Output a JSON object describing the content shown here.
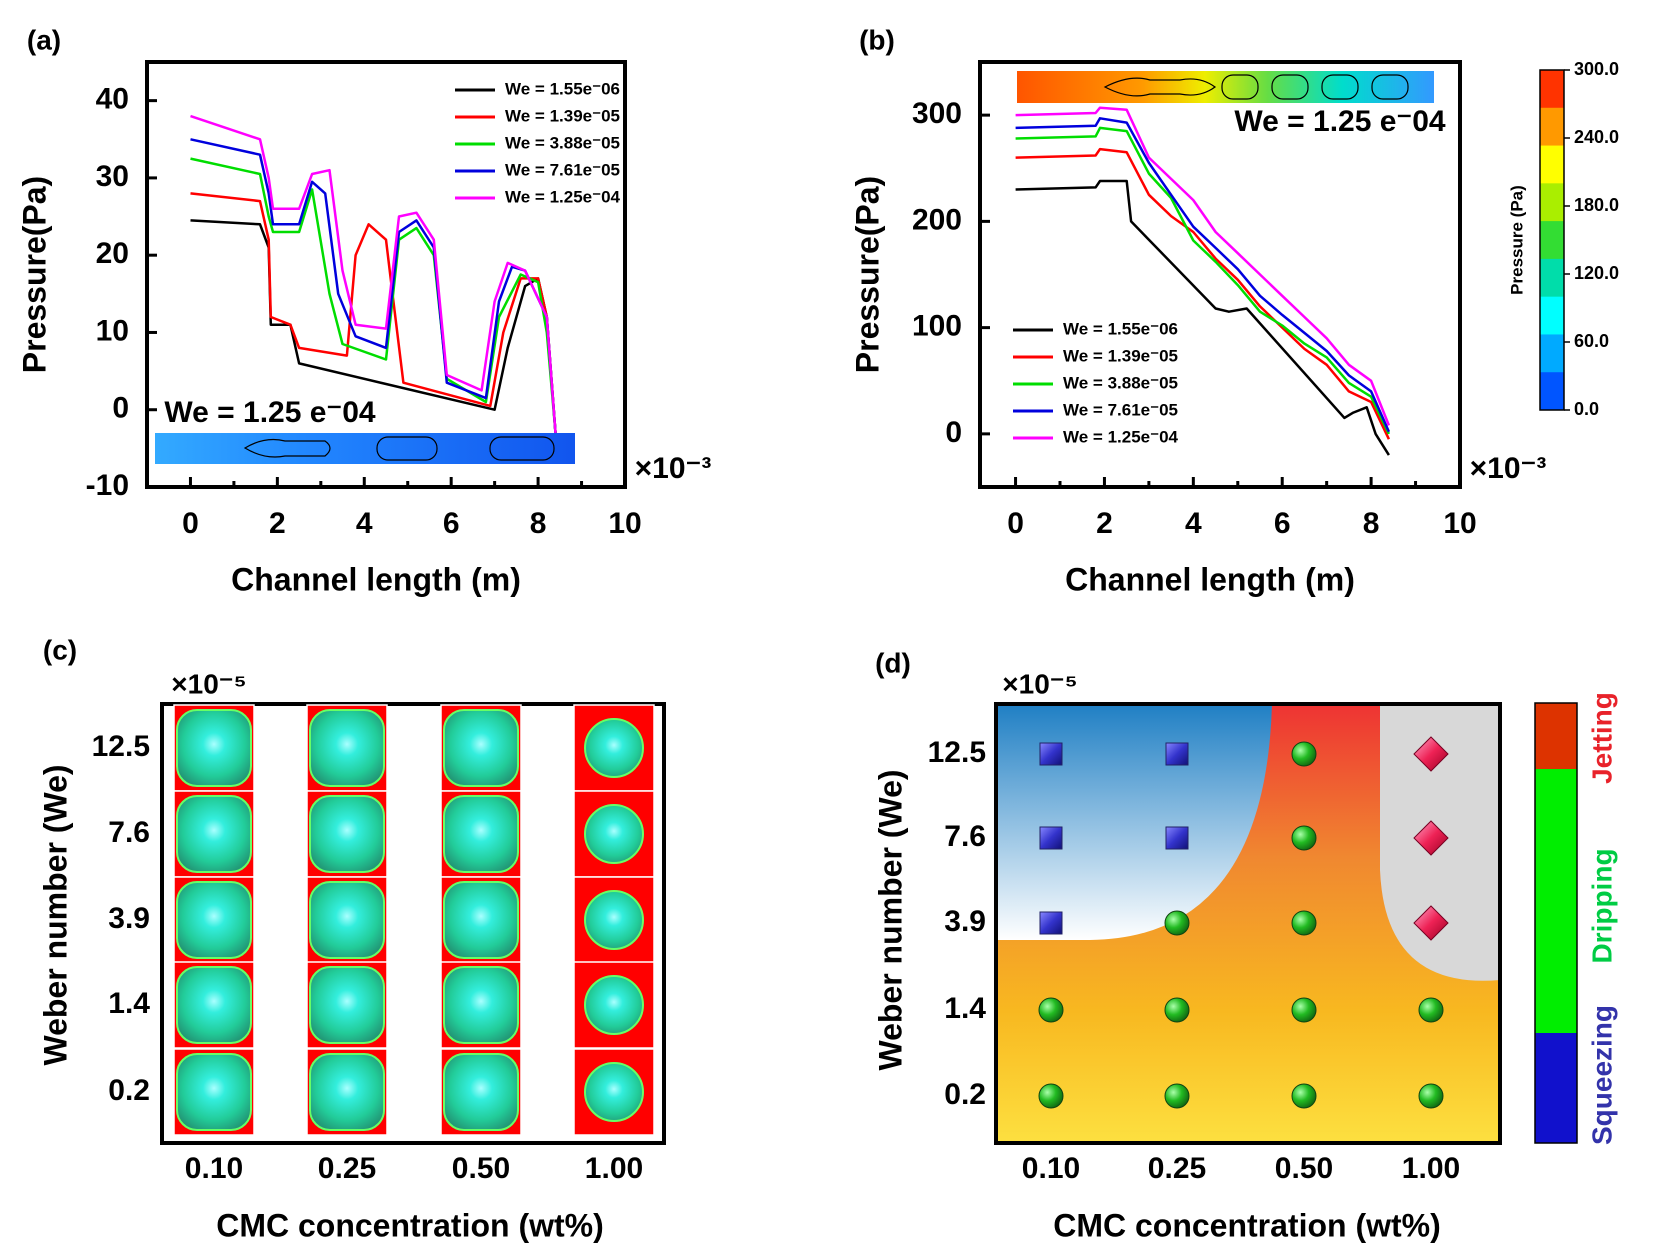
{
  "panels": {
    "a": {
      "label": "(a)",
      "banner": "We = 1.25 e⁻04",
      "exponent": "×10⁻³"
    },
    "b": {
      "label": "(b)",
      "banner": "We = 1.25 e⁻04",
      "exponent": "×10⁻³",
      "colorbar_title": "Pressure (Pa)"
    },
    "c": {
      "label": "(c)",
      "exponent": "×10⁻⁵"
    },
    "d": {
      "label": "(d)",
      "exponent": "×10⁻⁵"
    }
  },
  "chart_data": [
    {
      "id": "a",
      "type": "line",
      "xlabel": "Channel length (m)",
      "ylabel": "Pressure(Pa)",
      "xlim": [
        -1,
        10
      ],
      "ylim": [
        -10,
        45
      ],
      "xticks": [
        0,
        2,
        4,
        6,
        8,
        10
      ],
      "yticks": [
        -10,
        0,
        10,
        20,
        30,
        40
      ],
      "x_scale_note": "×10⁻³",
      "legend_position": "top-right",
      "series": [
        {
          "name": "We = 1.55e⁻06",
          "color": "#000000",
          "x": [
            0,
            1.6,
            1.8,
            1.85,
            2.3,
            2.5,
            7.0,
            7.3,
            7.7,
            8.0,
            8.2,
            8.4
          ],
          "y": [
            24.5,
            24,
            21,
            11,
            11,
            6,
            0,
            8,
            16,
            17,
            12,
            -3
          ]
        },
        {
          "name": "We = 1.39e⁻05",
          "color": "#ff0000",
          "x": [
            0,
            1.6,
            1.8,
            1.85,
            2.3,
            2.5,
            3.6,
            3.8,
            4.1,
            4.5,
            4.65,
            4.9,
            6.9,
            7.2,
            7.6,
            8.0,
            8.2,
            8.4
          ],
          "y": [
            28,
            27,
            22,
            12,
            11,
            8,
            7,
            20,
            24,
            22,
            15,
            3.5,
            0.5,
            10,
            17,
            17,
            12,
            -3
          ]
        },
        {
          "name": "We = 3.88e⁻05",
          "color": "#00dd00",
          "x": [
            0,
            1.6,
            1.8,
            1.9,
            2.5,
            2.8,
            3.2,
            3.5,
            4.5,
            4.8,
            5.2,
            5.6,
            5.9,
            6.8,
            7.1,
            7.6,
            8.0,
            8.2,
            8.4
          ],
          "y": [
            32.5,
            30.5,
            25,
            23,
            23,
            28.5,
            15,
            8.5,
            6.5,
            22,
            23.5,
            20,
            4,
            1,
            12,
            17.5,
            16.5,
            10,
            -3
          ]
        },
        {
          "name": "We = 7.61e⁻05",
          "color": "#0000dd",
          "x": [
            0,
            1.6,
            1.8,
            1.9,
            2.5,
            2.8,
            3.1,
            3.4,
            3.8,
            4.5,
            4.8,
            5.2,
            5.6,
            5.9,
            6.8,
            7.1,
            7.4,
            7.7,
            8.2,
            8.4
          ],
          "y": [
            35,
            33,
            28,
            24,
            24,
            29.5,
            28,
            15,
            9.5,
            8,
            23,
            24.5,
            21,
            3.5,
            1.5,
            14,
            18.5,
            18,
            12,
            -3
          ]
        },
        {
          "name": "We = 1.25e⁻04",
          "color": "#ff00ff",
          "x": [
            0,
            1.6,
            1.8,
            1.9,
            2.5,
            2.8,
            3.2,
            3.5,
            3.8,
            4.5,
            4.8,
            5.2,
            5.6,
            5.9,
            6.7,
            7.0,
            7.3,
            7.7,
            8.2,
            8.4
          ],
          "y": [
            38,
            35,
            30,
            26,
            26,
            30.5,
            31,
            18,
            11,
            10.5,
            25,
            25.5,
            22,
            4.5,
            2.5,
            14,
            19,
            18,
            12,
            -3
          ]
        }
      ]
    },
    {
      "id": "b",
      "type": "line",
      "xlabel": "Channel length (m)",
      "ylabel": "Pressure(Pa)",
      "xlim": [
        -0.8,
        10
      ],
      "ylim": [
        -50,
        350
      ],
      "xticks": [
        0,
        2,
        4,
        6,
        8,
        10
      ],
      "yticks": [
        0,
        100,
        200,
        300
      ],
      "x_scale_note": "×10⁻³",
      "legend_position": "bottom-left",
      "colorbar": {
        "title": "Pressure (Pa)",
        "ticks": [
          "300.0",
          "240.0",
          "180.0",
          "120.0",
          "60.0",
          "0.0"
        ],
        "colors": [
          "#ff3300",
          "#ff9900",
          "#ffff00",
          "#aaee00",
          "#33dd33",
          "#00ddaa",
          "#00ffff",
          "#00aaff",
          "#0055ff"
        ]
      },
      "series": [
        {
          "name": "We = 1.55e⁻06",
          "color": "#000000",
          "x": [
            0,
            1.8,
            1.9,
            2.5,
            2.6,
            4.5,
            4.8,
            5.2,
            7.4,
            7.6,
            7.9,
            8.1,
            8.4
          ],
          "y": [
            230,
            232,
            238,
            238,
            200,
            118,
            115,
            118,
            15,
            20,
            25,
            0,
            -20
          ]
        },
        {
          "name": "We = 1.39e⁻05",
          "color": "#ff0000",
          "x": [
            0,
            1.8,
            1.9,
            2.5,
            3.0,
            3.5,
            4.0,
            4.5,
            5.0,
            5.5,
            6.0,
            6.5,
            7.0,
            7.5,
            8.0,
            8.4
          ],
          "y": [
            260,
            262,
            268,
            265,
            225,
            205,
            190,
            165,
            145,
            120,
            100,
            80,
            65,
            40,
            30,
            -5
          ]
        },
        {
          "name": "We = 3.88e⁻05",
          "color": "#00dd00",
          "x": [
            0,
            1.8,
            1.9,
            2.5,
            3.0,
            3.5,
            4.0,
            4.5,
            5.0,
            5.5,
            6.0,
            6.5,
            7.0,
            7.5,
            8.0,
            8.4
          ],
          "y": [
            278,
            280,
            288,
            285,
            245,
            222,
            182,
            162,
            140,
            115,
            102,
            85,
            72,
            48,
            35,
            0
          ]
        },
        {
          "name": "We = 7.61e⁻05",
          "color": "#0000dd",
          "x": [
            0,
            1.8,
            1.9,
            2.5,
            3.0,
            3.5,
            4.0,
            4.5,
            5.0,
            5.5,
            6.0,
            6.5,
            7.0,
            7.5,
            8.0,
            8.4
          ],
          "y": [
            288,
            290,
            297,
            293,
            255,
            225,
            195,
            175,
            155,
            130,
            112,
            95,
            78,
            55,
            40,
            2
          ]
        },
        {
          "name": "We = 1.25e⁻04",
          "color": "#ff00ff",
          "x": [
            0,
            1.8,
            1.9,
            2.5,
            3.0,
            3.5,
            4.0,
            4.5,
            5.0,
            5.5,
            6.0,
            6.5,
            7.0,
            7.5,
            8.0,
            8.4
          ],
          "y": [
            300,
            302,
            307,
            305,
            260,
            240,
            220,
            190,
            170,
            150,
            130,
            110,
            90,
            65,
            50,
            8
          ]
        }
      ]
    },
    {
      "id": "c",
      "type": "image-grid",
      "xlabel": "CMC concentration (wt%)",
      "ylabel": "Weber number (We)",
      "y_scale_note": "×10⁻⁵",
      "categories_x": [
        "0.10",
        "0.25",
        "0.50",
        "1.00"
      ],
      "categories_y": [
        "12.5",
        "7.6",
        "3.9",
        "1.4",
        "0.2"
      ],
      "droplet_shape_by_concentration": [
        "rounded-square",
        "rounded-square",
        "rounded-square",
        "circle"
      ]
    },
    {
      "id": "d",
      "type": "scatter",
      "xlabel": "CMC concentration (wt%)",
      "ylabel": "Weber number (We)",
      "y_scale_note": "×10⁻⁵",
      "categories_x": [
        "0.10",
        "0.25",
        "0.50",
        "1.00"
      ],
      "categories_y": [
        "12.5",
        "7.6",
        "3.9",
        "1.4",
        "0.2"
      ],
      "regimes": [
        {
          "name": "Jetting",
          "color": "#e8222a"
        },
        {
          "name": "Dripping",
          "color": "#00cc44"
        },
        {
          "name": "Squeezing",
          "color": "#3333aa"
        }
      ],
      "points": [
        {
          "x": "0.10",
          "y": "12.5",
          "regime": "Squeezing"
        },
        {
          "x": "0.25",
          "y": "12.5",
          "regime": "Squeezing"
        },
        {
          "x": "0.50",
          "y": "12.5",
          "regime": "Dripping"
        },
        {
          "x": "1.00",
          "y": "12.5",
          "regime": "Jetting"
        },
        {
          "x": "0.10",
          "y": "7.6",
          "regime": "Squeezing"
        },
        {
          "x": "0.25",
          "y": "7.6",
          "regime": "Squeezing"
        },
        {
          "x": "0.50",
          "y": "7.6",
          "regime": "Dripping"
        },
        {
          "x": "1.00",
          "y": "7.6",
          "regime": "Jetting"
        },
        {
          "x": "0.10",
          "y": "3.9",
          "regime": "Squeezing"
        },
        {
          "x": "0.25",
          "y": "3.9",
          "regime": "Dripping"
        },
        {
          "x": "0.50",
          "y": "3.9",
          "regime": "Dripping"
        },
        {
          "x": "1.00",
          "y": "3.9",
          "regime": "Jetting"
        },
        {
          "x": "0.10",
          "y": "1.4",
          "regime": "Dripping"
        },
        {
          "x": "0.25",
          "y": "1.4",
          "regime": "Dripping"
        },
        {
          "x": "0.50",
          "y": "1.4",
          "regime": "Dripping"
        },
        {
          "x": "1.00",
          "y": "1.4",
          "regime": "Dripping"
        },
        {
          "x": "0.10",
          "y": "0.2",
          "regime": "Dripping"
        },
        {
          "x": "0.25",
          "y": "0.2",
          "regime": "Dripping"
        },
        {
          "x": "0.50",
          "y": "0.2",
          "regime": "Dripping"
        },
        {
          "x": "1.00",
          "y": "0.2",
          "regime": "Dripping"
        }
      ]
    }
  ]
}
